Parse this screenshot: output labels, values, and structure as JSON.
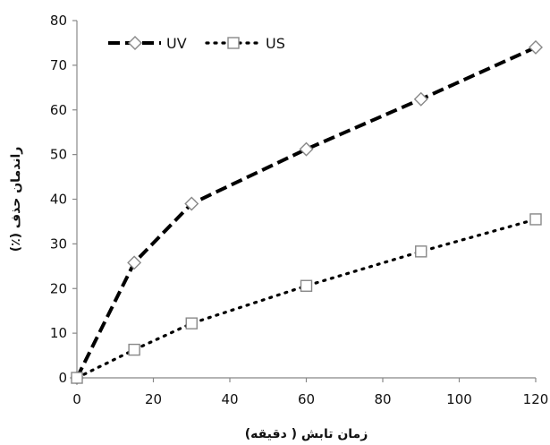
{
  "chart_data": {
    "type": "line",
    "xlabel": "زمان تابش ( دقیقه)",
    "ylabel": "راندمان حذف (٪)",
    "xlim": [
      0,
      120
    ],
    "ylim": [
      0,
      80
    ],
    "xticks": [
      0,
      20,
      40,
      60,
      80,
      100,
      120
    ],
    "yticks": [
      0,
      10,
      20,
      30,
      40,
      50,
      60,
      70,
      80
    ],
    "grid": false,
    "legend_position": "top-left",
    "series": [
      {
        "name": "UV",
        "style": "dashed",
        "marker": "diamond",
        "color": "#000000",
        "x": [
          0,
          15,
          30,
          60,
          90,
          120
        ],
        "y": [
          0,
          25.8,
          39,
          51.2,
          62.4,
          74
        ]
      },
      {
        "name": "US",
        "style": "dotted",
        "marker": "square",
        "color": "#000000",
        "x": [
          0,
          15,
          30,
          60,
          90,
          120
        ],
        "y": [
          0,
          6.3,
          12.2,
          20.6,
          28.3,
          35.5
        ]
      }
    ]
  },
  "colors": {
    "marker_fill": "#ffffff",
    "marker_stroke": "#888888",
    "axis": "#888888"
  }
}
